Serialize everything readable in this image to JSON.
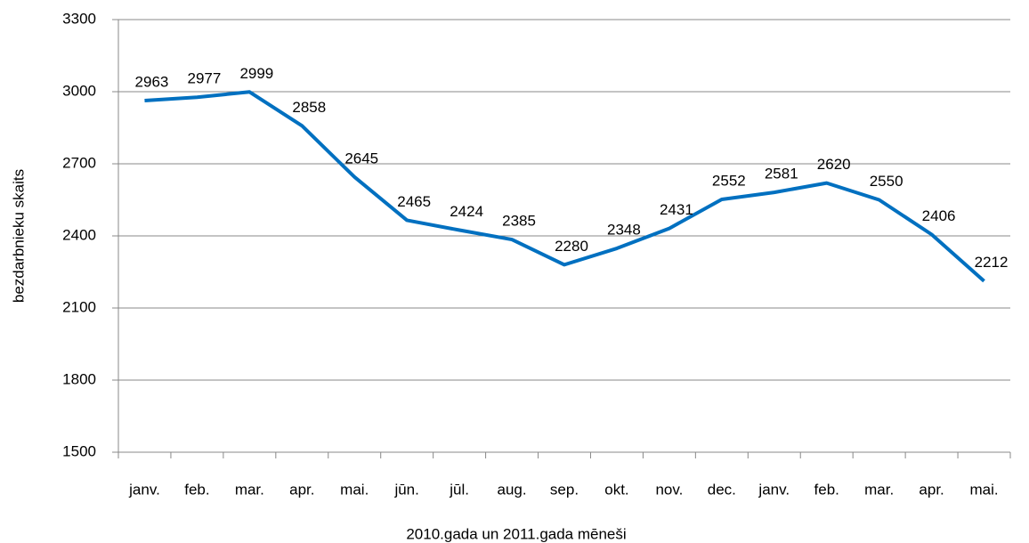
{
  "chart_data": {
    "type": "line",
    "y_label": "bezdarbnieku skaits",
    "x_label": "2010.gada un 2011.gada mēneši",
    "categories": [
      "janv.",
      "feb.",
      "mar.",
      "apr.",
      "mai.",
      "jūn.",
      "jūl.",
      "aug.",
      "sep.",
      "okt.",
      "nov.",
      "dec.",
      "janv.",
      "feb.",
      "mar.",
      "apr.",
      "mai."
    ],
    "values": [
      2963,
      2977,
      2999,
      2858,
      2645,
      2465,
      2424,
      2385,
      2280,
      2348,
      2431,
      2552,
      2581,
      2620,
      2550,
      2406,
      2212
    ],
    "color": "#0070c0",
    "ylim": [
      1500,
      3300
    ],
    "yticks": [
      1500,
      1800,
      2100,
      2400,
      2700,
      3000,
      3300
    ],
    "grid": true
  }
}
